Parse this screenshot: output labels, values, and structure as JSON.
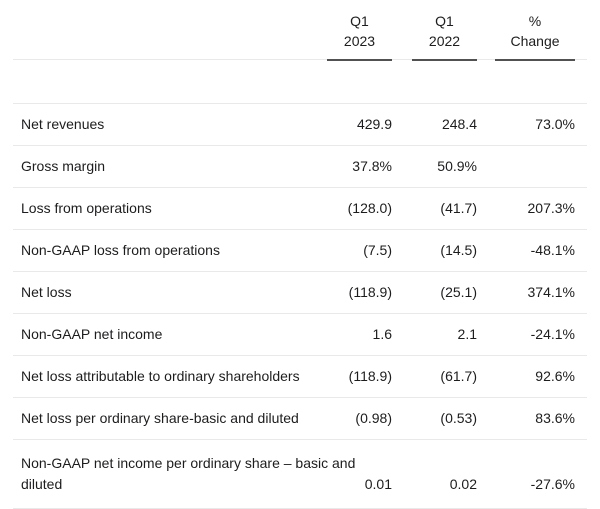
{
  "table": {
    "columns": [
      {
        "line1": "Q1",
        "line2": "2023"
      },
      {
        "line1": "Q1",
        "line2": "2022"
      },
      {
        "line1": "%",
        "line2": "Change"
      }
    ],
    "rows": [
      {
        "label": "Net revenues",
        "values": [
          "429.9",
          "248.4",
          "73.0%"
        ]
      },
      {
        "label": "Gross margin",
        "values": [
          "37.8%",
          "50.9%",
          ""
        ]
      },
      {
        "label": "Loss from operations",
        "values": [
          "(128.0)",
          "(41.7)",
          "207.3%"
        ]
      },
      {
        "label": "Non-GAAP loss from operations",
        "values": [
          "(7.5)",
          "(14.5)",
          "-48.1%"
        ]
      },
      {
        "label": "Net loss",
        "values": [
          "(118.9)",
          "(25.1)",
          "374.1%"
        ]
      },
      {
        "label": "Non-GAAP net income",
        "values": [
          "1.6",
          "2.1",
          "-24.1%"
        ]
      },
      {
        "label": "Net loss attributable to ordinary shareholders",
        "values": [
          "(118.9)",
          "(61.7)",
          "92.6%"
        ]
      },
      {
        "label": "Net loss per ordinary share-basic and diluted",
        "values": [
          "(0.98)",
          "(0.53)",
          "83.6%"
        ]
      },
      {
        "label": "Non-GAAP net income per ordinary share – basic and diluted",
        "values": [
          "0.01",
          "0.02",
          "-27.6%"
        ]
      }
    ]
  },
  "colors": {
    "background": "#ffffff",
    "text": "#1d1d1f",
    "row_separator": "#e9e9e9",
    "header_underline": "#515153"
  },
  "chart_data": {
    "type": "table",
    "title": "",
    "columns": [
      "",
      "Q1 2023",
      "Q1 2022",
      "% Change"
    ],
    "rows": [
      [
        "Net revenues",
        "429.9",
        "248.4",
        "73.0%"
      ],
      [
        "Gross margin",
        "37.8%",
        "50.9%",
        ""
      ],
      [
        "Loss from operations",
        "(128.0)",
        "(41.7)",
        "207.3%"
      ],
      [
        "Non-GAAP loss from operations",
        "(7.5)",
        "(14.5)",
        "-48.1%"
      ],
      [
        "Net loss",
        "(118.9)",
        "(25.1)",
        "374.1%"
      ],
      [
        "Non-GAAP net income",
        "1.6",
        "2.1",
        "-24.1%"
      ],
      [
        "Net loss attributable to ordinary shareholders",
        "(118.9)",
        "(61.7)",
        "92.6%"
      ],
      [
        "Net loss per ordinary share-basic and diluted",
        "(0.98)",
        "(0.53)",
        "83.6%"
      ],
      [
        "Non-GAAP net income per ordinary share – basic and diluted",
        "0.01",
        "0.02",
        "-27.6%"
      ]
    ]
  }
}
